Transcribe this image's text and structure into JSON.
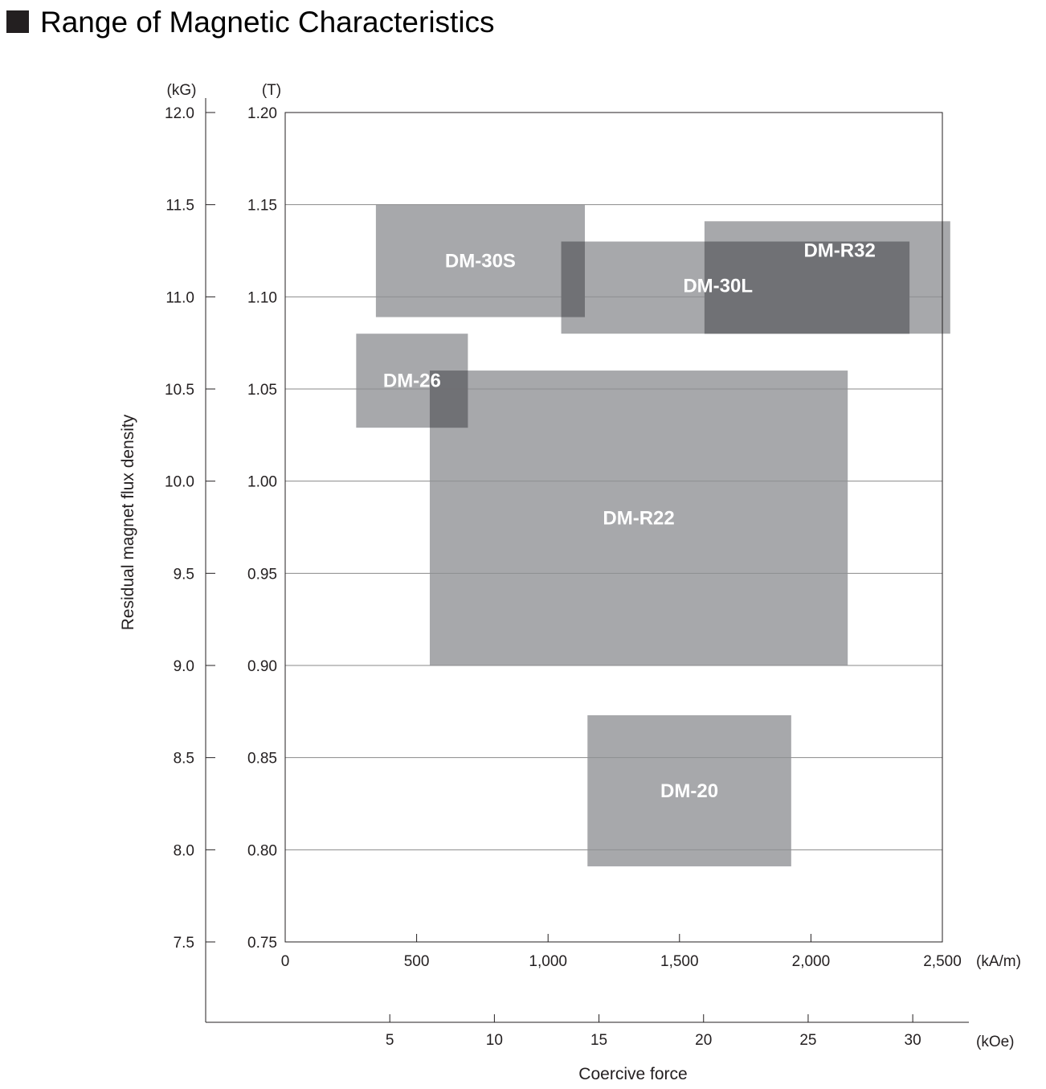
{
  "title": "Range of Magnetic Characteristics",
  "colors": {
    "region": "#8e8f93",
    "region_overlap": "#6a6b6f",
    "gridline": "#8a8a8a",
    "axis": "#231f20",
    "label_text": "#ffffff",
    "title_marker": "#231f20"
  },
  "chart_data": {
    "type": "range-rectangles",
    "title": "Range of Magnetic Characteristics",
    "xlabel": "Coercive force",
    "ylabel": "Residual magnet flux density",
    "grid": true,
    "axes": {
      "x_primary": {
        "unit": "(kA/m)",
        "range": [
          0,
          2500
        ],
        "ticks": [
          0,
          500,
          1000,
          1500,
          2000,
          2500
        ],
        "tick_labels": [
          "0",
          "500",
          "1,000",
          "1,500",
          "2,000",
          "2,500"
        ]
      },
      "x_secondary": {
        "unit": "(kOe)",
        "ticks": [
          5,
          10,
          15,
          20,
          25,
          30
        ],
        "tick_labels": [
          "5",
          "10",
          "15",
          "20",
          "25",
          "30"
        ]
      },
      "y_primary": {
        "unit": "(T)",
        "range": [
          0.75,
          1.2
        ],
        "ticks": [
          0.75,
          0.8,
          0.85,
          0.9,
          0.95,
          1.0,
          1.05,
          1.1,
          1.15,
          1.2
        ],
        "tick_labels": [
          "0.75",
          "0.80",
          "0.85",
          "0.90",
          "0.95",
          "1.00",
          "1.05",
          "1.10",
          "1.15",
          "1.20"
        ]
      },
      "y_secondary": {
        "unit": "(kG)",
        "ticks": [
          7.5,
          8.0,
          8.5,
          9.0,
          9.5,
          10.0,
          10.5,
          11.0,
          11.5,
          12.0
        ],
        "tick_labels": [
          "7.5",
          "8.0",
          "8.5",
          "9.0",
          "9.5",
          "10.0",
          "10.5",
          "11.0",
          "11.5",
          "12.0"
        ]
      }
    },
    "regions": [
      {
        "name": "DM-30S",
        "x_range": [
          345,
          1140
        ],
        "y_range": [
          1.089,
          1.15
        ]
      },
      {
        "name": "DM-30L",
        "x_range": [
          1050,
          2375
        ],
        "y_range": [
          1.08,
          1.13
        ]
      },
      {
        "name": "DM-R32",
        "x_range": [
          1595,
          2530
        ],
        "y_range": [
          1.08,
          1.141
        ]
      },
      {
        "name": "DM-26",
        "x_range": [
          270,
          695
        ],
        "y_range": [
          1.029,
          1.08
        ]
      },
      {
        "name": "DM-R22",
        "x_range": [
          550,
          2140
        ],
        "y_range": [
          0.9,
          1.06
        ]
      },
      {
        "name": "DM-20",
        "x_range": [
          1150,
          1925
        ],
        "y_range": [
          0.791,
          0.873
        ]
      }
    ],
    "overlaps": [
      {
        "between": [
          "DM-30S",
          "DM-30L"
        ]
      },
      {
        "between": [
          "DM-30L",
          "DM-R32"
        ]
      },
      {
        "between": [
          "DM-26",
          "DM-R22"
        ]
      }
    ]
  }
}
